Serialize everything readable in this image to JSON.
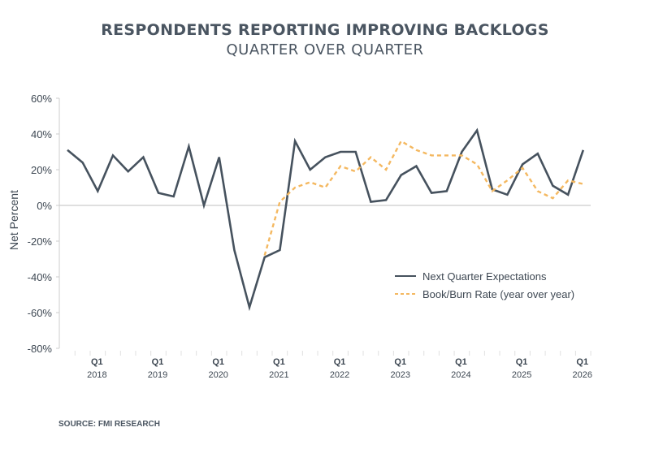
{
  "header": {
    "title": "RESPONDENTS REPORTING IMPROVING BACKLOGS",
    "subtitle": "QUARTER OVER QUARTER"
  },
  "footer": {
    "source": "SOURCE: FMI RESEARCH"
  },
  "colors": {
    "primary_series": "#46525e",
    "secondary_series": "#f4b860",
    "axis": "#cccccc",
    "text": "#3d4752"
  },
  "chart_data": {
    "type": "line",
    "title": "RESPONDENTS REPORTING IMPROVING BACKLOGS",
    "subtitle": "QUARTER OVER QUARTER",
    "xlabel": "",
    "ylabel": "Net Percent",
    "ylim": [
      -80,
      60
    ],
    "yticks": [
      "60%",
      "40%",
      "20%",
      "0%",
      "-20%",
      "-40%",
      "-60%",
      "-80%"
    ],
    "xtick_labels": [
      {
        "q": "Q1",
        "year": "2018"
      },
      {
        "q": "Q1",
        "year": "2019"
      },
      {
        "q": "Q1",
        "year": "2020"
      },
      {
        "q": "Q1",
        "year": "2021"
      },
      {
        "q": "Q1",
        "year": "2022"
      },
      {
        "q": "Q1",
        "year": "2023"
      },
      {
        "q": "Q1",
        "year": "2024"
      },
      {
        "q": "Q1",
        "year": "2025"
      },
      {
        "q": "Q1",
        "year": "2026"
      }
    ],
    "x": [
      "Q3 2017",
      "Q4 2017",
      "Q1 2018",
      "Q2 2018",
      "Q3 2018",
      "Q4 2018",
      "Q1 2019",
      "Q2 2019",
      "Q3 2019",
      "Q4 2019",
      "Q1 2020",
      "Q2 2020",
      "Q3 2020",
      "Q4 2020",
      "Q1 2021",
      "Q2 2021",
      "Q3 2021",
      "Q4 2021",
      "Q1 2022",
      "Q2 2022",
      "Q3 2022",
      "Q4 2022",
      "Q1 2023",
      "Q2 2023",
      "Q3 2023",
      "Q4 2023",
      "Q1 2024",
      "Q2 2024",
      "Q3 2024",
      "Q4 2024",
      "Q1 2025",
      "Q2 2025",
      "Q3 2025",
      "Q4 2025",
      "Q1 2026"
    ],
    "series": [
      {
        "name": "Next Quarter Expectations",
        "style": "solid",
        "values": [
          31,
          24,
          8,
          28,
          19,
          27,
          7,
          5,
          33,
          0,
          27,
          -25,
          -57,
          -29,
          -25,
          36,
          20,
          27,
          30,
          30,
          2,
          3,
          17,
          22,
          7,
          8,
          30,
          42,
          9,
          6,
          23,
          29,
          11,
          6,
          31
        ]
      },
      {
        "name": "Book/Burn Rate (year over year)",
        "style": "dashed",
        "values": [
          null,
          null,
          null,
          null,
          null,
          null,
          null,
          null,
          null,
          null,
          null,
          null,
          null,
          -28,
          2,
          10,
          13,
          10,
          22,
          19,
          27,
          20,
          36,
          31,
          28,
          28,
          28,
          23,
          8,
          14,
          21,
          8,
          4,
          14,
          12
        ]
      }
    ],
    "grid": false,
    "legend_position": "lower right inside plot"
  }
}
